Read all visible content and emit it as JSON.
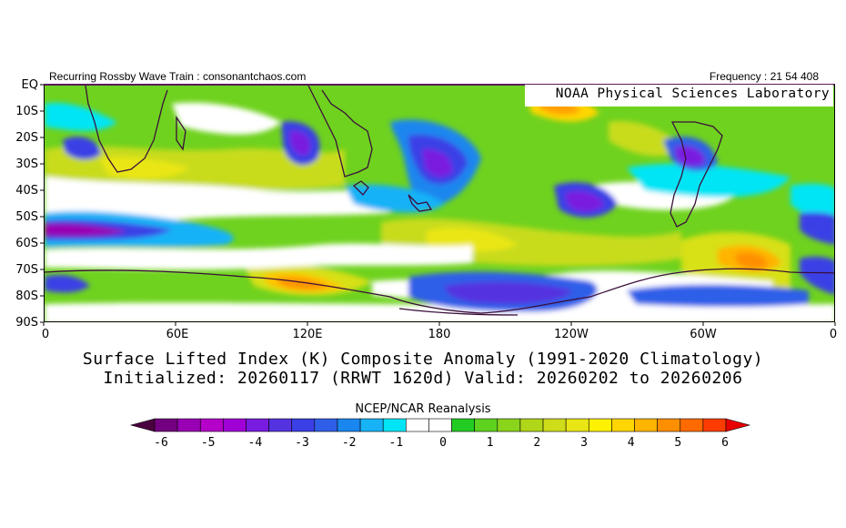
{
  "header": {
    "left_text": "Recurring Rossby Wave Train : consonantchaos.com",
    "right_text": "Frequency : 21 54 408",
    "lab_text": "NOAA Physical Sciences Laboratory"
  },
  "map": {
    "lat_labels": [
      "EQ",
      "10S",
      "20S",
      "30S",
      "40S",
      "50S",
      "60S",
      "70S",
      "80S",
      "90S"
    ],
    "lon_labels": [
      "0",
      "60E",
      "120E",
      "180",
      "120W",
      "60W",
      "0"
    ],
    "title_line1": "Surface Lifted Index (K) Composite Anomaly (1991-2020 Climatology)",
    "title_line2": "Initialized: 20260117 (RRWT 1620d) Valid: 20260202 to 20260206",
    "source": "NCEP/NCAR Reanalysis"
  },
  "colorbar": {
    "labels": [
      "-6",
      "-5",
      "-4",
      "-3",
      "-2",
      "-1",
      "0",
      "1",
      "2",
      "3",
      "4",
      "5",
      "6"
    ],
    "colors": [
      "#4b0040",
      "#730080",
      "#9900b3",
      "#b400c8",
      "#a000d6",
      "#7a1be0",
      "#5532e0",
      "#3a3fe6",
      "#2f5fe8",
      "#1a86ef",
      "#18b2f7",
      "#00e5f5",
      "#ffffff",
      "#ffffff",
      "#22cc22",
      "#5fd11f",
      "#8ad41c",
      "#b0d619",
      "#cfdc1a",
      "#eae615",
      "#fff200",
      "#ffd600",
      "#ffb400",
      "#ff8f00",
      "#ff6a00",
      "#ff3c00",
      "#e80000"
    ]
  }
}
